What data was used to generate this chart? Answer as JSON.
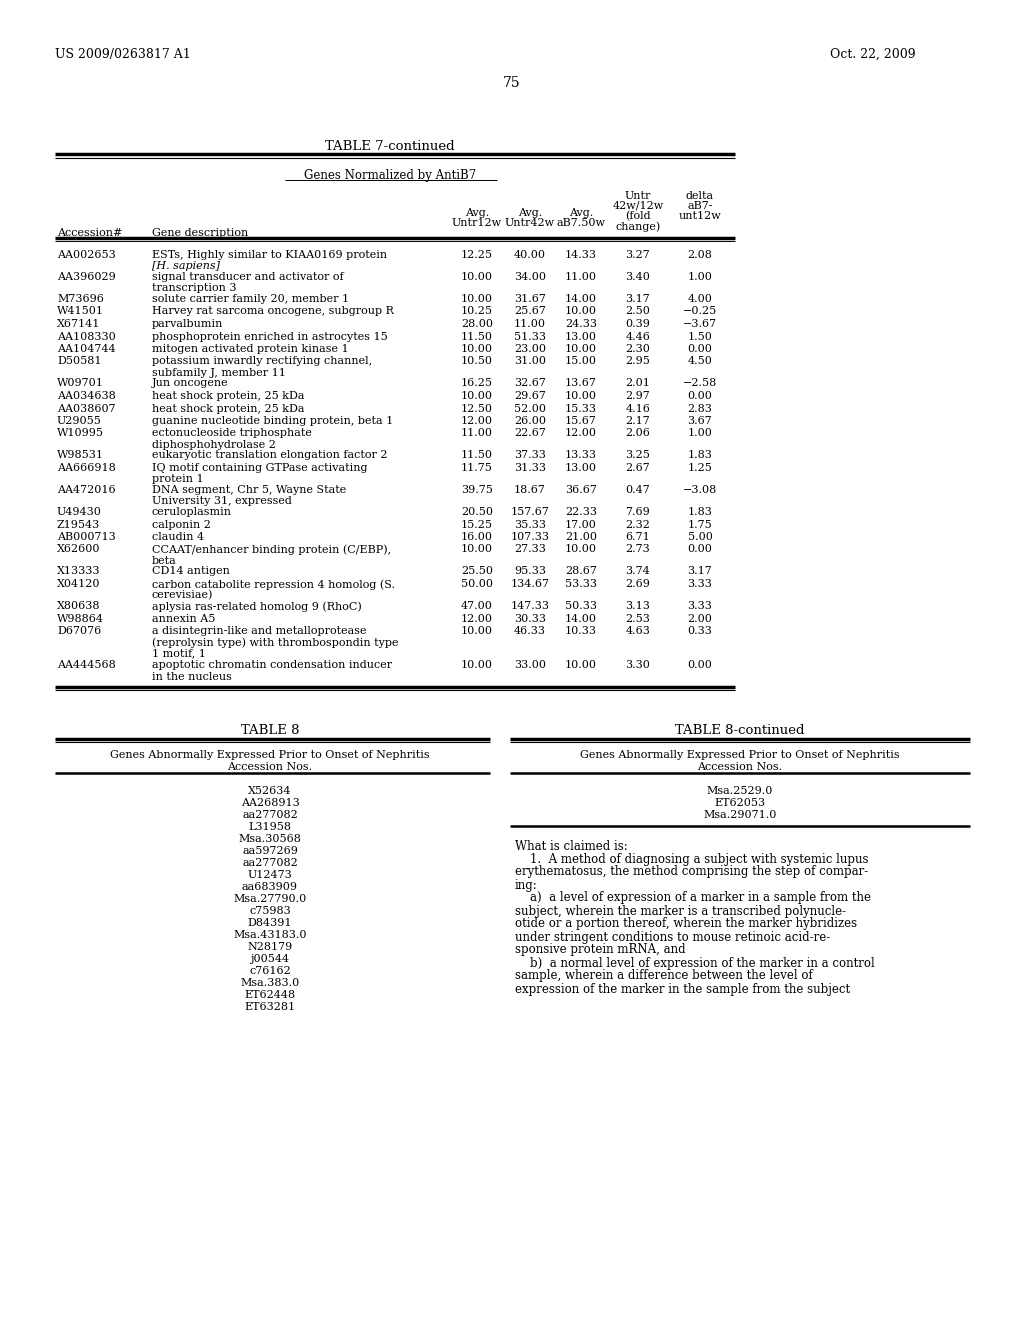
{
  "header_left": "US 2009/0263817 A1",
  "header_right": "Oct. 22, 2009",
  "page_number": "75",
  "table7_title": "TABLE 7-continued",
  "table7_subtitle": "Genes Normalized by AntiB7",
  "table7_rows": [
    [
      "AA002653",
      "ESTs, Highly similar to KIAA0169 protein",
      "[H. sapiens]",
      "12.25",
      "40.00",
      "14.33",
      "3.27",
      "2.08"
    ],
    [
      "AA396029",
      "signal transducer and activator of",
      "transcription 3",
      "10.00",
      "34.00",
      "11.00",
      "3.40",
      "1.00"
    ],
    [
      "M73696",
      "solute carrier family 20, member 1",
      "",
      "10.00",
      "31.67",
      "14.00",
      "3.17",
      "4.00"
    ],
    [
      "W41501",
      "Harvey rat sarcoma oncogene, subgroup R",
      "",
      "10.25",
      "25.67",
      "10.00",
      "2.50",
      "−0.25"
    ],
    [
      "X67141",
      "parvalbumin",
      "",
      "28.00",
      "11.00",
      "24.33",
      "0.39",
      "−3.67"
    ],
    [
      "AA108330",
      "phosphoprotein enriched in astrocytes 15",
      "",
      "11.50",
      "51.33",
      "13.00",
      "4.46",
      "1.50"
    ],
    [
      "AA104744",
      "mitogen activated protein kinase 1",
      "",
      "10.00",
      "23.00",
      "10.00",
      "2.30",
      "0.00"
    ],
    [
      "D50581",
      "potassium inwardly rectifying channel,",
      "subfamily J, member 11",
      "10.50",
      "31.00",
      "15.00",
      "2.95",
      "4.50"
    ],
    [
      "W09701",
      "Jun oncogene",
      "",
      "16.25",
      "32.67",
      "13.67",
      "2.01",
      "−2.58"
    ],
    [
      "AA034638",
      "heat shock protein, 25 kDa",
      "",
      "10.00",
      "29.67",
      "10.00",
      "2.97",
      "0.00"
    ],
    [
      "AA038607",
      "heat shock protein, 25 kDa",
      "",
      "12.50",
      "52.00",
      "15.33",
      "4.16",
      "2.83"
    ],
    [
      "U29055",
      "guanine nucleotide binding protein, beta 1",
      "",
      "12.00",
      "26.00",
      "15.67",
      "2.17",
      "3.67"
    ],
    [
      "W10995",
      "ectonucleoside triphosphate",
      "diphosphohydrolase 2",
      "11.00",
      "22.67",
      "12.00",
      "2.06",
      "1.00"
    ],
    [
      "W98531",
      "eukaryotic translation elongation factor 2",
      "",
      "11.50",
      "37.33",
      "13.33",
      "3.25",
      "1.83"
    ],
    [
      "AA666918",
      "IQ motif containing GTPase activating",
      "protein 1",
      "11.75",
      "31.33",
      "13.00",
      "2.67",
      "1.25"
    ],
    [
      "AA472016",
      "DNA segment, Chr 5, Wayne State",
      "University 31, expressed",
      "39.75",
      "18.67",
      "36.67",
      "0.47",
      "−3.08"
    ],
    [
      "U49430",
      "ceruloplasmin",
      "",
      "20.50",
      "157.67",
      "22.33",
      "7.69",
      "1.83"
    ],
    [
      "Z19543",
      "calponin 2",
      "",
      "15.25",
      "35.33",
      "17.00",
      "2.32",
      "1.75"
    ],
    [
      "AB000713",
      "claudin 4",
      "",
      "16.00",
      "107.33",
      "21.00",
      "6.71",
      "5.00"
    ],
    [
      "X62600",
      "CCAAT/enhancer binding protein (C/EBP),",
      "beta",
      "10.00",
      "27.33",
      "10.00",
      "2.73",
      "0.00"
    ],
    [
      "X13333",
      "CD14 antigen",
      "",
      "25.50",
      "95.33",
      "28.67",
      "3.74",
      "3.17"
    ],
    [
      "X04120",
      "carbon catabolite repression 4 homolog (S.",
      "cerevisiae)",
      "50.00",
      "134.67",
      "53.33",
      "2.69",
      "3.33"
    ],
    [
      "X80638",
      "aplysia ras-related homolog 9 (RhoC)",
      "",
      "47.00",
      "147.33",
      "50.33",
      "3.13",
      "3.33"
    ],
    [
      "W98864",
      "annexin A5",
      "",
      "12.00",
      "30.33",
      "14.00",
      "2.53",
      "2.00"
    ],
    [
      "D67076",
      "a disintegrin-like and metalloprotease",
      "(reprolysin type) with thrombospondin type",
      "10.00",
      "46.33",
      "10.33",
      "4.63",
      "0.33"
    ],
    [
      "D67076_3",
      "1 motif, 1",
      "",
      "",
      "",
      "",
      "",
      ""
    ],
    [
      "AA444568",
      "apoptotic chromatin condensation inducer",
      "in the nucleus",
      "10.00",
      "33.00",
      "10.00",
      "3.30",
      "0.00"
    ]
  ],
  "table8_title": "TABLE 8",
  "table8cont_title": "TABLE 8-continued",
  "table8_entries": [
    "X52634",
    "AA268913",
    "aa277082",
    "L31958",
    "Msa.30568",
    "aa597269",
    "aa277082",
    "U12473",
    "aa683909",
    "Msa.27790.0",
    "c75983",
    "D84391",
    "Msa.43183.0",
    "N28179",
    "j00544",
    "c76162",
    "Msa.383.0",
    "ET62448",
    "ET63281"
  ],
  "table8cont_entries": [
    "Msa.2529.0",
    "ET62053",
    "Msa.29071.0"
  ],
  "claims_lines": [
    "What is claimed is:",
    "    1.  A method of diagnosing a subject with systemic lupus",
    "erythematosus, the method comprising the step of compar-",
    "ing:",
    "    a)  a level of expression of a marker in a sample from the",
    "subject, wherein the marker is a transcribed polynucle-",
    "otide or a portion thereof, wherein the marker hybridizes",
    "under stringent conditions to mouse retinoic acid-re-",
    "sponsive protein mRNA, and",
    "    b)  a normal level of expression of the marker in a control",
    "sample, wherein a difference between the level of",
    "expression of the marker in the sample from the subject"
  ],
  "background_color": "#ffffff",
  "text_color": "#000000"
}
